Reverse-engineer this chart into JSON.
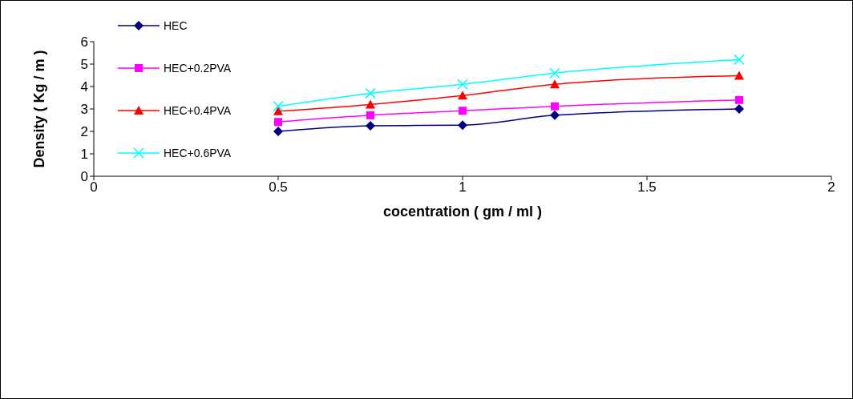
{
  "chart_data": {
    "type": "line",
    "xlabel": "cocentration ( gm / ml )",
    "ylabel": "Density ( Kg / m )",
    "x": [
      0.5,
      0.75,
      1,
      1.25,
      1.75
    ],
    "series": [
      {
        "name": "HEC",
        "color": "#000080",
        "marker": "diamond",
        "values": [
          2.0,
          2.25,
          2.28,
          2.72,
          3.0
        ]
      },
      {
        "name": "HEC+0.2PVA",
        "color": "#ff00ff",
        "marker": "square",
        "values": [
          2.42,
          2.72,
          2.92,
          3.12,
          3.4
        ]
      },
      {
        "name": "HEC+0.4PVA",
        "color": "#ff0000",
        "marker": "triangle",
        "values": [
          2.9,
          3.2,
          3.6,
          4.1,
          4.48
        ]
      },
      {
        "name": "HEC+0.6PVA",
        "color": "#00ffff",
        "marker": "cross",
        "values": [
          3.12,
          3.7,
          4.1,
          4.6,
          5.2
        ]
      }
    ],
    "xlim": [
      0,
      2
    ],
    "xticks": [
      0,
      0.5,
      1,
      1.5,
      2
    ],
    "ylim": [
      0,
      6
    ],
    "yticks": [
      0,
      1,
      2,
      3,
      4,
      5,
      6
    ],
    "grid": false,
    "legend": "top left",
    "line_style": "solid"
  }
}
